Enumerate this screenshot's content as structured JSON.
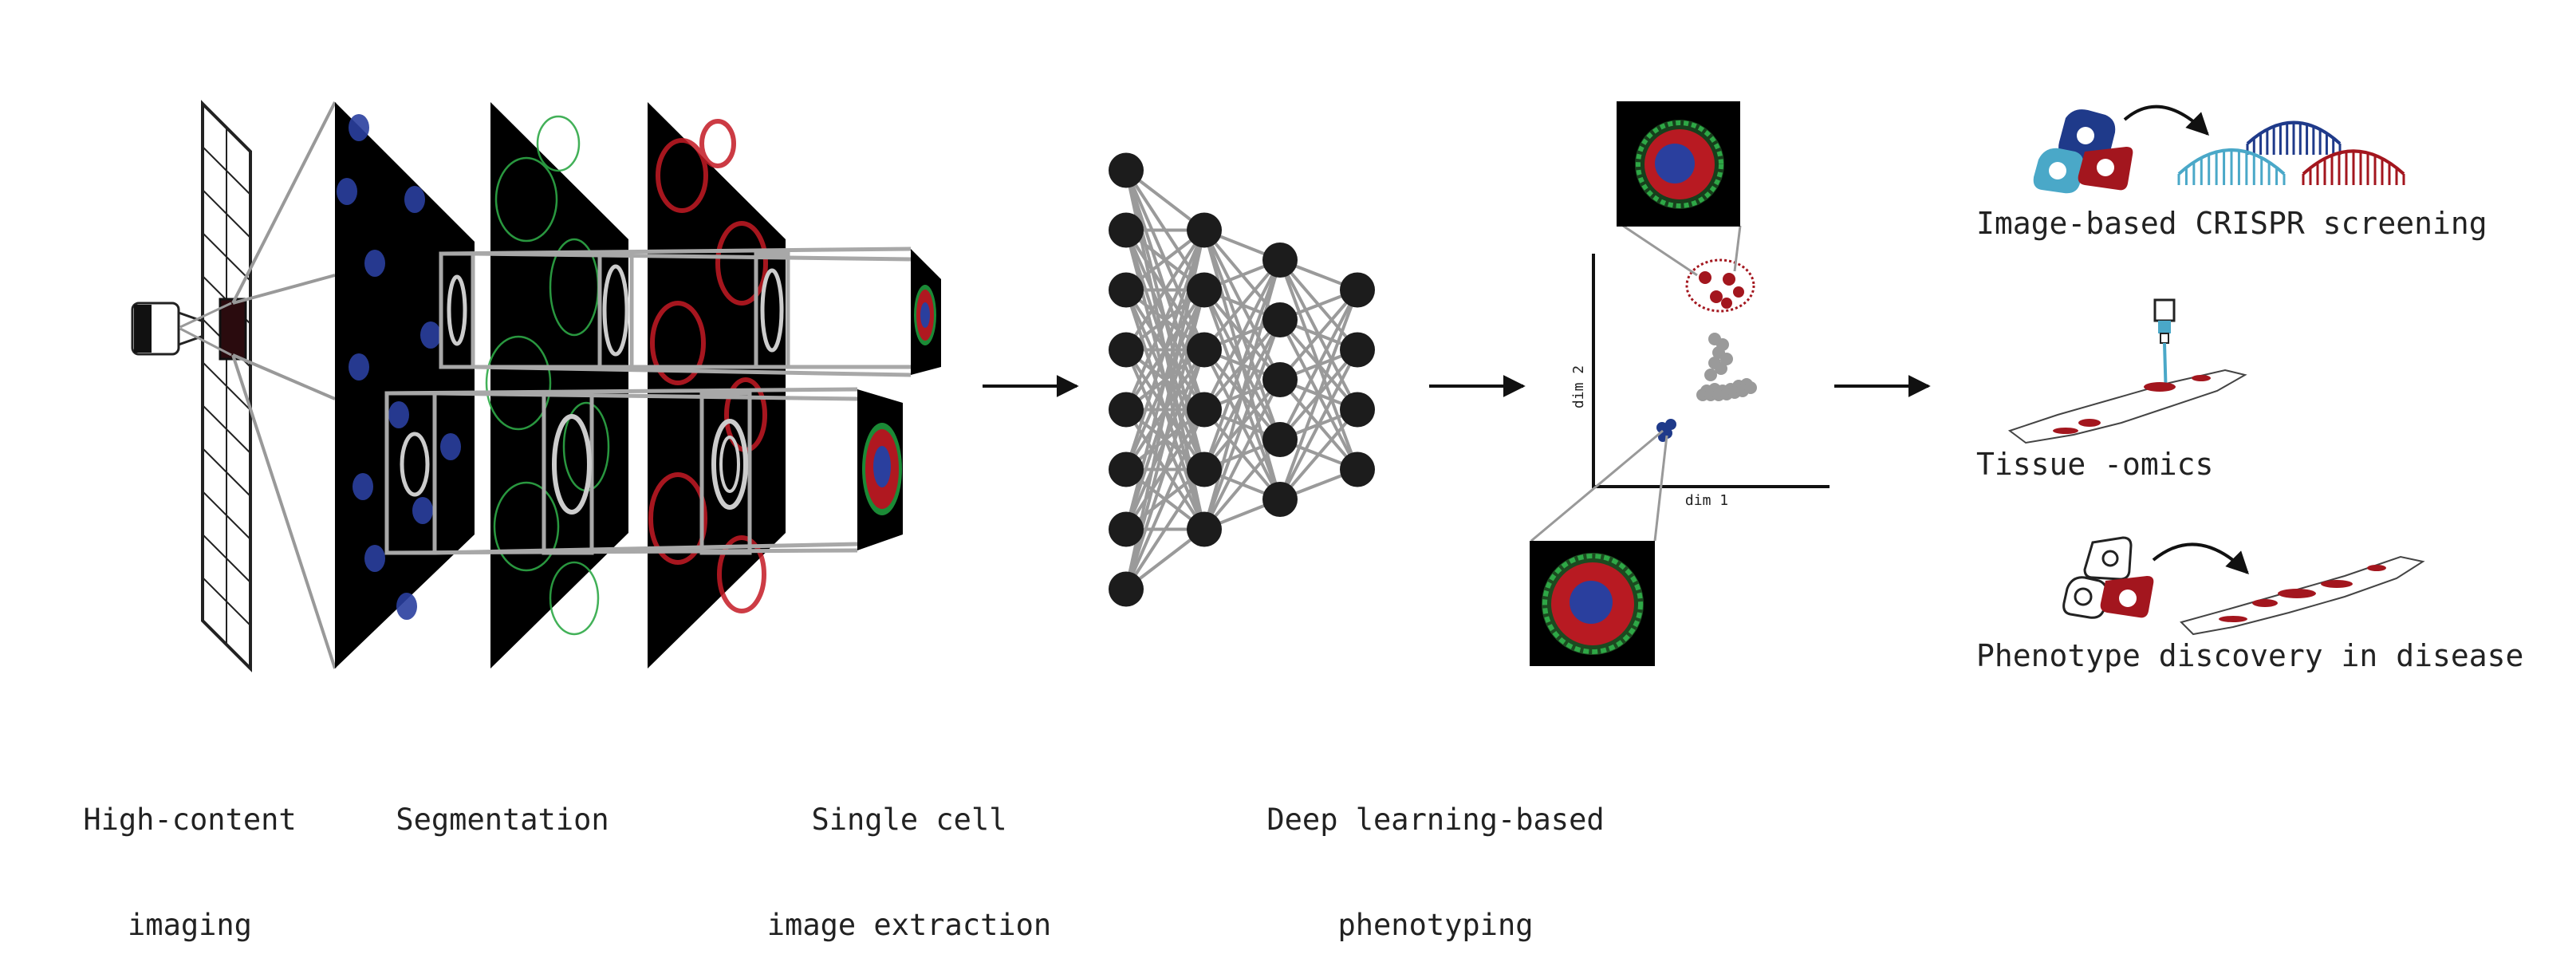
{
  "pipeline": {
    "steps": [
      {
        "line1": "High-content",
        "line2": "imaging"
      },
      {
        "line1": "Segmentation",
        "line2": ""
      },
      {
        "line1": "Single cell",
        "line2": "image extraction"
      },
      {
        "line1": "Deep learning-based",
        "line2": "phenotyping"
      }
    ]
  },
  "embedding": {
    "x_axis_label": "dim 1",
    "y_axis_label": "dim 2"
  },
  "applications": [
    {
      "label": "Image-based CRISPR screening"
    },
    {
      "label": "Tissue -omics"
    },
    {
      "label": "Phenotype discovery in disease"
    }
  ],
  "neural_network": {
    "layer_sizes": [
      8,
      6,
      5,
      4
    ]
  },
  "colors": {
    "nucleus_blue": "#2a3f9e",
    "membrane_green": "#38b24a",
    "cytoplasm_red": "#d0202a",
    "dark_red": "#a3161e",
    "cluster_gray": "#9a9a9a",
    "node_black": "#1c1c1c",
    "light_blue": "#4aa8c8",
    "navy": "#1f3a8a"
  }
}
